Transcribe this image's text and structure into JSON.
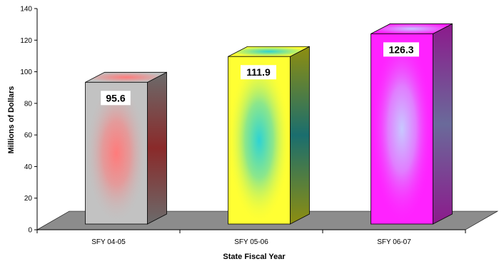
{
  "chart_data": {
    "type": "bar",
    "title": "",
    "xlabel": "State Fiscal Year",
    "ylabel": "Millions of Dollars",
    "categories": [
      "SFY 04-05",
      "SFY 05-06",
      "SFY 06-07"
    ],
    "values": [
      95.6,
      111.9,
      126.3
    ],
    "data_labels": [
      "95.6",
      "111.9",
      "126.3"
    ],
    "ylim": [
      0,
      140
    ],
    "yticks": [
      0,
      20,
      40,
      60,
      80,
      100,
      120,
      140
    ],
    "grid": false,
    "legend": "none",
    "style": "3d-column",
    "bar_colors": [
      {
        "face": "#c2c2c2",
        "glow": "#ff7b7b",
        "side": "#6b6b6b",
        "side_glow": "#8a2a2a"
      },
      {
        "face": "#ffff33",
        "glow": "#2ed3d3",
        "side": "#8e8e10",
        "side_glow": "#1a6e6e"
      },
      {
        "face": "#ff22ff",
        "glow": "#c8c8ff",
        "side": "#8c1a8c",
        "side_glow": "#6a6a9a"
      }
    ],
    "floor_color": "#8c8c8c"
  }
}
